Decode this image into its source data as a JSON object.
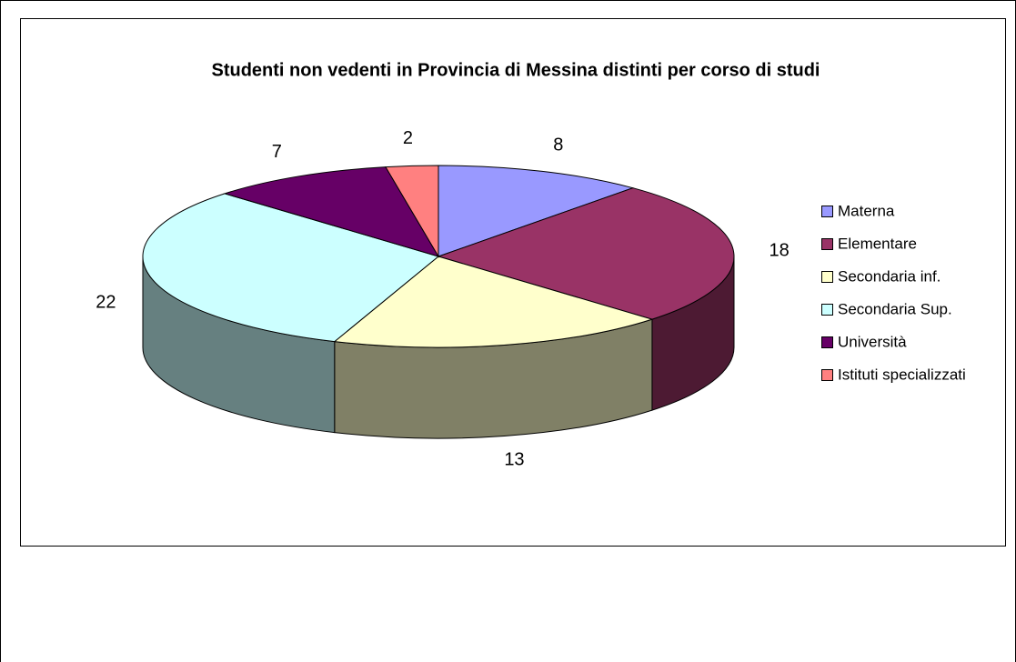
{
  "chart_data": {
    "type": "pie",
    "title": "Studenti non vedenti in Provincia di Messina distinti per corso di studi",
    "categories": [
      "Materna",
      "Elementare",
      "Secondaria inf.",
      "Secondaria Sup.",
      "Università",
      "Istituti specializzati"
    ],
    "values": [
      8,
      18,
      13,
      22,
      7,
      2
    ],
    "colors": [
      "#9999ff",
      "#993366",
      "#ffffcc",
      "#ccffff",
      "#660066",
      "#ff8080"
    ],
    "legend": "right"
  }
}
